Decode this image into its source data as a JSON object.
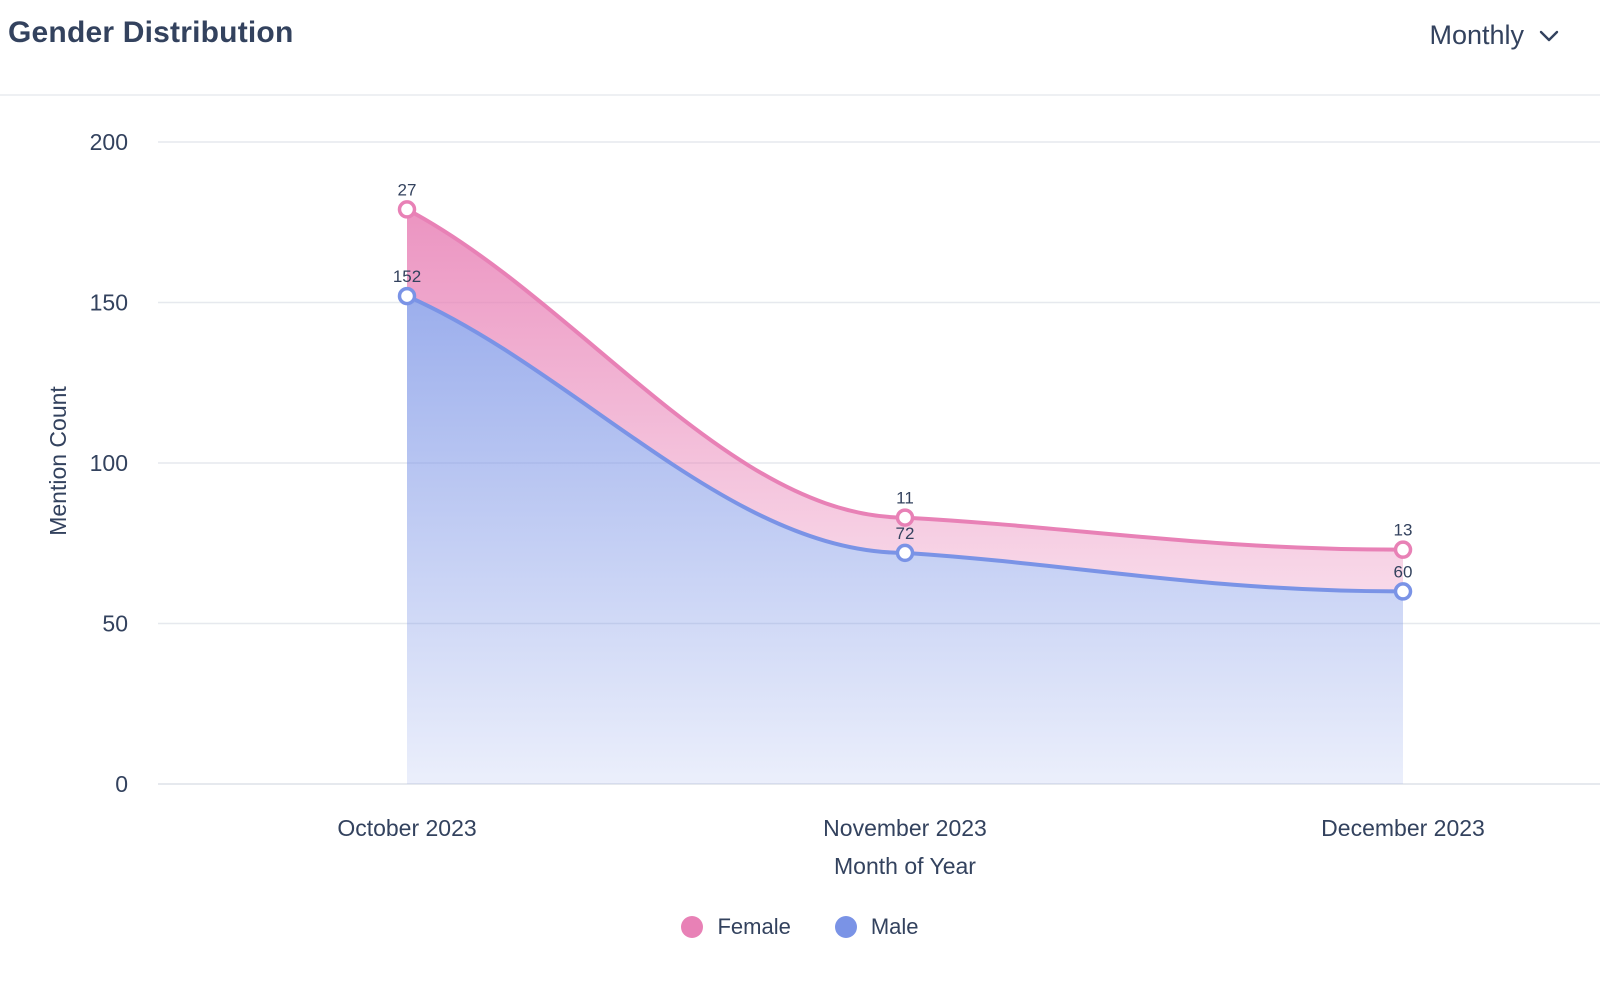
{
  "header": {
    "title": "Gender Distribution",
    "period": "Monthly"
  },
  "icons": {
    "period_dropdown": "chevron-down-icon"
  },
  "colors": {
    "female": "#e881b6",
    "male": "#7a93e6",
    "text": "#33425e",
    "grid": "#e6e9ee"
  },
  "chart_data": {
    "type": "area",
    "stacked": true,
    "categories": [
      "October 2023",
      "November 2023",
      "December 2023"
    ],
    "series": [
      {
        "name": "Male",
        "values": [
          152,
          72,
          60
        ]
      },
      {
        "name": "Female",
        "values": [
          27,
          11,
          13
        ]
      }
    ],
    "xlabel": "Month of Year",
    "ylabel": "Mention Count",
    "ylim": [
      0,
      200
    ],
    "yticks": [
      0,
      50,
      100,
      150,
      200
    ],
    "grid": true,
    "legend": "bottom-center"
  }
}
